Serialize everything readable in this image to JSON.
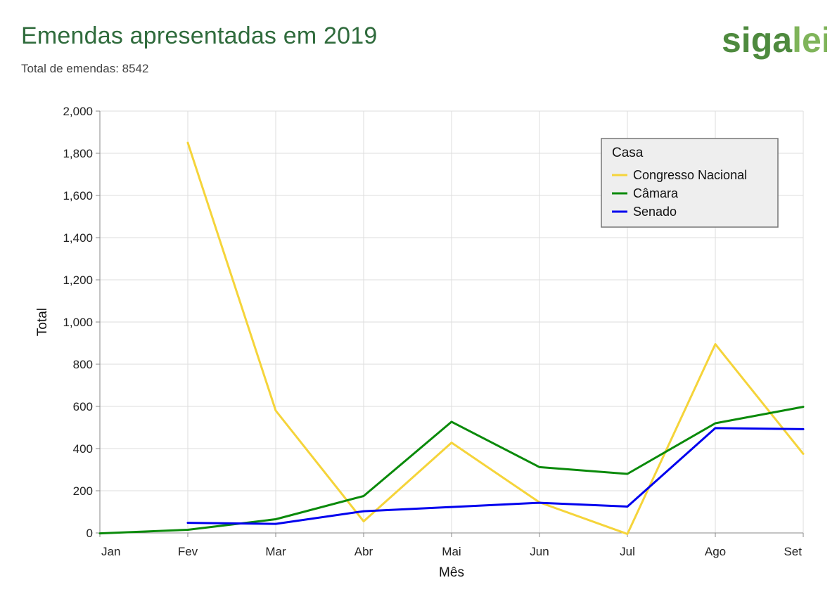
{
  "header": {
    "title": "Emendas apresentadas em 2019",
    "subtitle": "Total de emendas: 8542"
  },
  "logo": {
    "part1": "siga",
    "part2": "lei",
    "color_dark": "#4e8a3e",
    "color_light": "#7fb45a"
  },
  "colors": {
    "grid": "#dddddd",
    "axis": "#888888",
    "legend_bg": "#eeeeee",
    "legend_border": "#777777"
  },
  "chart_data": {
    "type": "line",
    "title": "Emendas apresentadas em 2019",
    "xlabel": "Mês",
    "ylabel": "Total",
    "ylim": [
      0,
      2000
    ],
    "yticks": [
      0,
      200,
      400,
      600,
      800,
      1000,
      1200,
      1400,
      1600,
      1800,
      2000
    ],
    "ytick_labels": [
      "0",
      "200",
      "400",
      "600",
      "800",
      "1,000",
      "1,200",
      "1,400",
      "1,600",
      "1,800",
      "2,000"
    ],
    "categories": [
      "Jan",
      "Fev",
      "Mar",
      "Abr",
      "Mai",
      "Jun",
      "Jul",
      "Ago",
      "Set"
    ],
    "grid": true,
    "legend": {
      "title": "Casa",
      "placement": "top-right"
    },
    "series": [
      {
        "name": "Congresso Nacional",
        "color": "#f5d43a",
        "values": [
          null,
          1850,
          580,
          55,
          428,
          145,
          -5,
          895,
          375
        ]
      },
      {
        "name": "Câmara",
        "color": "#0a8a0a",
        "values": [
          -2,
          15,
          65,
          175,
          527,
          312,
          280,
          520,
          598
        ]
      },
      {
        "name": "Senado",
        "color": "#0000ee",
        "values": [
          null,
          48,
          43,
          103,
          123,
          143,
          125,
          497,
          492
        ]
      }
    ]
  }
}
